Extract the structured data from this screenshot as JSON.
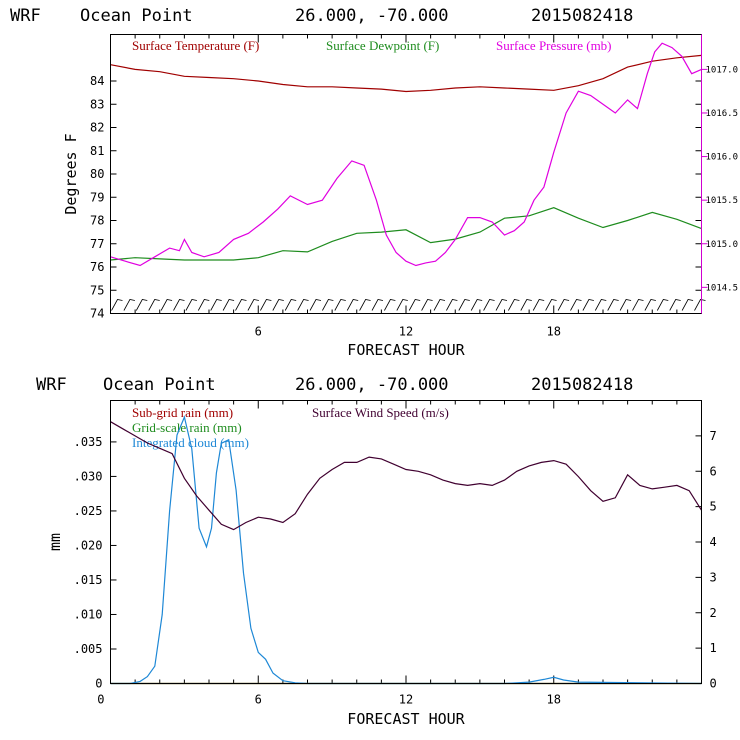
{
  "colors": {
    "temperature": "#a00000",
    "dewpoint": "#1e8c1e",
    "pressure": "#e000e0",
    "rain": "#a00000",
    "grid_rain": "#1e8c1e",
    "cloud": "#1e88d6",
    "wind": "#400030",
    "pressure_axis": "#d000d0"
  },
  "chart_data": [
    {
      "type": "line",
      "header": {
        "model": "WRF",
        "location": "Ocean Point",
        "coords": "26.000, -70.000",
        "run": "2015082418"
      },
      "xlabel": "FORECAST HOUR",
      "ylabel": "Degrees F",
      "xlim": [
        0,
        24
      ],
      "xticks": [
        6,
        12,
        18
      ],
      "ylim": [
        74,
        86
      ],
      "yticks": [
        74,
        75,
        76,
        77,
        78,
        79,
        80,
        81,
        82,
        83,
        84
      ],
      "y2lim": [
        1014.2,
        1017.4
      ],
      "y2ticks": [
        "1014.5",
        "1015.0",
        "1015.5",
        "1016.0",
        "1016.5",
        "1017.0"
      ],
      "legend": [
        "Surface Temperature (F)",
        "Surface Dewpoint (F)",
        "Surface Pressure (mb)"
      ],
      "series": [
        {
          "name": "Surface Temperature (F)",
          "axis": "left",
          "x": [
            0,
            1,
            2,
            3,
            4,
            5,
            6,
            7,
            8,
            9,
            10,
            11,
            12,
            13,
            14,
            15,
            16,
            17,
            18,
            19,
            20,
            21,
            22,
            23,
            24
          ],
          "y": [
            84.7,
            84.5,
            84.4,
            84.2,
            84.15,
            84.1,
            84.0,
            83.85,
            83.75,
            83.75,
            83.7,
            83.65,
            83.55,
            83.6,
            83.7,
            83.75,
            83.7,
            83.65,
            83.6,
            83.8,
            84.1,
            84.6,
            84.85,
            85.0,
            85.1
          ]
        },
        {
          "name": "Surface Dewpoint (F)",
          "axis": "left",
          "x": [
            0,
            1,
            2,
            3,
            4,
            5,
            6,
            7,
            8,
            9,
            10,
            11,
            12,
            13,
            14,
            15,
            16,
            17,
            18,
            19,
            20,
            21,
            22,
            23,
            24
          ],
          "y": [
            76.3,
            76.4,
            76.35,
            76.3,
            76.3,
            76.3,
            76.4,
            76.7,
            76.65,
            77.1,
            77.45,
            77.5,
            77.6,
            77.05,
            77.2,
            77.5,
            78.1,
            78.2,
            78.55,
            78.1,
            77.7,
            78.0,
            78.35,
            78.05,
            77.65
          ]
        },
        {
          "name": "Surface Pressure (mb)",
          "axis": "right",
          "x": [
            0,
            0.6,
            1.2,
            1.8,
            2.4,
            2.8,
            3.0,
            3.3,
            3.8,
            4.4,
            5.0,
            5.6,
            6.2,
            6.8,
            7.3,
            8.0,
            8.6,
            9.2,
            9.8,
            10.3,
            10.8,
            11.2,
            11.6,
            12.0,
            12.4,
            12.8,
            13.2,
            13.6,
            14.0,
            14.5,
            15.0,
            15.5,
            16.0,
            16.4,
            16.8,
            17.2,
            17.6,
            18.0,
            18.5,
            19.0,
            19.5,
            20.0,
            20.5,
            21.0,
            21.4,
            21.8,
            22.1,
            22.4,
            22.8,
            23.2,
            23.6,
            24.0
          ],
          "y": [
            1014.85,
            1014.8,
            1014.75,
            1014.85,
            1014.95,
            1014.92,
            1015.05,
            1014.9,
            1014.85,
            1014.9,
            1015.05,
            1015.12,
            1015.25,
            1015.4,
            1015.55,
            1015.45,
            1015.5,
            1015.75,
            1015.95,
            1015.9,
            1015.5,
            1015.1,
            1014.9,
            1014.8,
            1014.75,
            1014.78,
            1014.8,
            1014.9,
            1015.05,
            1015.3,
            1015.3,
            1015.25,
            1015.1,
            1015.15,
            1015.25,
            1015.5,
            1015.65,
            1016.05,
            1016.5,
            1016.75,
            1016.7,
            1016.6,
            1016.5,
            1016.65,
            1016.55,
            1016.95,
            1017.2,
            1017.3,
            1017.25,
            1017.15,
            1016.95,
            1017.0
          ]
        }
      ]
    },
    {
      "type": "line",
      "header": {
        "model": "WRF",
        "location": "Ocean Point",
        "coords": "26.000, -70.000",
        "run": "2015082418"
      },
      "xlabel": "FORECAST HOUR",
      "ylabel": "mm",
      "xlim": [
        0,
        24
      ],
      "xticks": [
        0,
        6,
        12,
        18
      ],
      "ylim": [
        0,
        0.041
      ],
      "yticks": [
        ".035",
        ".030",
        ".025",
        ".020",
        ".015",
        ".010",
        ".005",
        "0"
      ],
      "y2lim": [
        0,
        8
      ],
      "y2ticks": [
        "0",
        "1",
        "2",
        "3",
        "4",
        "5",
        "6",
        "7"
      ],
      "legend": [
        "Sub-grid rain (mm)",
        "Grid-scale rain (mm)",
        "Integrated cloud (mm)",
        "Surface Wind Speed (m/s)"
      ],
      "series": [
        {
          "name": "Sub-grid rain (mm)",
          "axis": "left",
          "x": [
            0,
            24
          ],
          "y": [
            0,
            0
          ]
        },
        {
          "name": "Grid-scale rain (mm)",
          "axis": "left",
          "x": [
            0,
            24
          ],
          "y": [
            0,
            0
          ]
        },
        {
          "name": "Integrated cloud (mm)",
          "axis": "left",
          "x": [
            0,
            0.8,
            1.2,
            1.5,
            1.8,
            2.1,
            2.4,
            2.7,
            3.0,
            3.3,
            3.6,
            3.9,
            4.1,
            4.3,
            4.5,
            4.8,
            5.1,
            5.4,
            5.7,
            6.0,
            6.3,
            6.6,
            7.0,
            7.5,
            8.0,
            16.0,
            17.0,
            17.6,
            18.0,
            18.4,
            19.0,
            24.0
          ],
          "y": [
            0,
            0,
            0.0003,
            0.001,
            0.0025,
            0.01,
            0.025,
            0.036,
            0.0386,
            0.034,
            0.0225,
            0.0198,
            0.0225,
            0.0305,
            0.0348,
            0.0353,
            0.028,
            0.016,
            0.008,
            0.0045,
            0.0035,
            0.0015,
            0.0004,
            0.0001,
            0,
            0,
            0.0002,
            0.0006,
            0.0009,
            0.0005,
            0.0002,
            0
          ]
        },
        {
          "name": "Surface Wind Speed (m/s)",
          "axis": "right",
          "x": [
            0,
            0.5,
            1,
            1.5,
            2,
            2.5,
            3,
            3.5,
            4,
            4.5,
            5,
            5.5,
            6,
            6.5,
            7,
            7.5,
            8,
            8.5,
            9,
            9.5,
            10,
            10.5,
            11,
            11.5,
            12,
            12.5,
            13,
            13.5,
            14,
            14.5,
            15,
            15.5,
            16,
            16.5,
            17,
            17.5,
            18,
            18.5,
            19,
            19.5,
            20,
            20.5,
            21,
            21.5,
            22,
            22.5,
            23,
            23.5,
            24
          ],
          "y": [
            7.4,
            7.2,
            7.0,
            6.8,
            6.65,
            6.5,
            5.8,
            5.3,
            4.9,
            4.5,
            4.35,
            4.55,
            4.7,
            4.65,
            4.55,
            4.8,
            5.35,
            5.8,
            6.05,
            6.25,
            6.25,
            6.4,
            6.35,
            6.2,
            6.05,
            6.0,
            5.9,
            5.75,
            5.65,
            5.6,
            5.65,
            5.6,
            5.75,
            6.0,
            6.15,
            6.25,
            6.3,
            6.2,
            5.85,
            5.45,
            5.15,
            5.25,
            5.9,
            5.6,
            5.5,
            5.55,
            5.6,
            5.45,
            4.9
          ]
        }
      ]
    }
  ]
}
